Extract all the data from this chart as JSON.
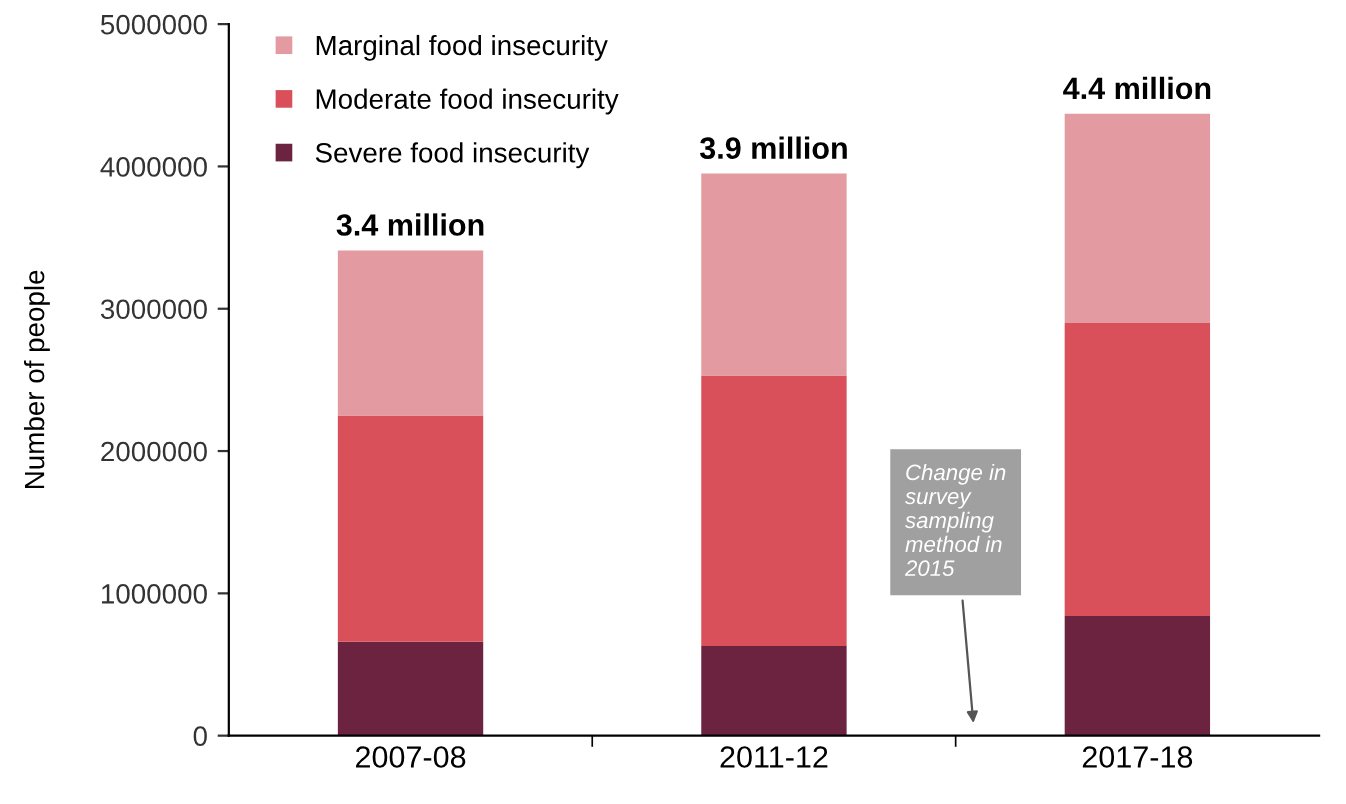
{
  "chart_data": {
    "type": "bar",
    "stacked": true,
    "ylabel": "Number of people",
    "categories": [
      "2007-08",
      "2011-12",
      "2017-18"
    ],
    "series": [
      {
        "name": "Severe food insecurity",
        "color": "#6b2340",
        "values": [
          660000,
          630000,
          840000
        ]
      },
      {
        "name": "Moderate food insecurity",
        "color": "#d9505a",
        "values": [
          1590000,
          1900000,
          2060000
        ]
      },
      {
        "name": "Marginal food insecurity",
        "color": "#e39aa0",
        "values": [
          1160000,
          1420000,
          1470000
        ]
      }
    ],
    "totals": [
      "3.4 million",
      "3.9 million",
      "4.4 million"
    ],
    "ylim": [
      0,
      5000000
    ],
    "yticks": [
      0,
      1000000,
      2000000,
      3000000,
      4000000,
      5000000
    ],
    "annotations": [
      "Change in survey sampling method in 2015"
    ],
    "legend": "top left",
    "grid": false
  }
}
